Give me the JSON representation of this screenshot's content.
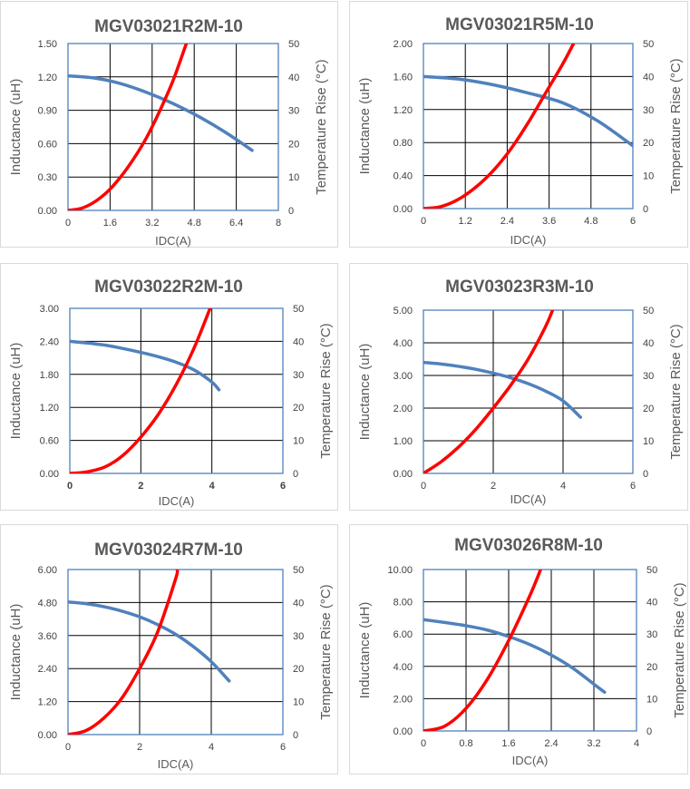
{
  "colors": {
    "inductance": "#4f81bd",
    "temperature": "#ff0000",
    "grid": "#000000",
    "plot_border": "#4f81bd"
  },
  "chart_data": [
    {
      "type": "line",
      "title": "MGV03021R2M-10",
      "xlabel": "IDC(A)",
      "ylabel": "Inductance (uH)",
      "y2label": "Temperature Rise (°C)",
      "xlim": [
        0,
        8
      ],
      "ylim": [
        0,
        1.5
      ],
      "y2lim": [
        0,
        50
      ],
      "xticks": [
        "0",
        "1.6",
        "3.2",
        "4.8",
        "6.4",
        "8"
      ],
      "yticks": [
        "0.00",
        "0.30",
        "0.60",
        "0.90",
        "1.20",
        "1.50"
      ],
      "y2ticks": [
        "0",
        "10",
        "20",
        "30",
        "40",
        "50"
      ],
      "series": [
        {
          "name": "Inductance",
          "axis": "left",
          "x": [
            0,
            1,
            2,
            3,
            4,
            5,
            6,
            7
          ],
          "y": [
            1.21,
            1.19,
            1.14,
            1.06,
            0.96,
            0.84,
            0.7,
            0.54
          ]
        },
        {
          "name": "Temperature Rise",
          "axis": "right",
          "x": [
            0,
            0.5,
            1,
            1.5,
            2,
            2.5,
            3,
            3.5,
            4,
            4.5
          ],
          "y": [
            0,
            0.6,
            2.5,
            5.6,
            10,
            15.5,
            22,
            30,
            39,
            50
          ]
        }
      ]
    },
    {
      "type": "line",
      "title": "MGV03021R5M-10",
      "xlabel": "IDC(A)",
      "ylabel": "Inductance (uH)",
      "y2label": "Temperature Rise (°C)",
      "xlim": [
        0,
        6
      ],
      "ylim": [
        0,
        2.0
      ],
      "y2lim": [
        0,
        50
      ],
      "xticks": [
        "0",
        "1.2",
        "2.4",
        "3.6",
        "4.8",
        "6"
      ],
      "yticks": [
        "0.00",
        "0.40",
        "0.80",
        "1.20",
        "1.60",
        "2.00"
      ],
      "y2ticks": [
        "0",
        "10",
        "20",
        "30",
        "40",
        "50"
      ],
      "series": [
        {
          "name": "Inductance",
          "axis": "left",
          "x": [
            0,
            1,
            2,
            3,
            4,
            5,
            6
          ],
          "y": [
            1.6,
            1.57,
            1.5,
            1.4,
            1.28,
            1.06,
            0.76
          ]
        },
        {
          "name": "Temperature Rise",
          "axis": "right",
          "x": [
            0,
            0.5,
            1,
            1.5,
            2,
            2.5,
            3,
            3.5,
            4,
            4.3
          ],
          "y": [
            0,
            0.6,
            2.8,
            6.5,
            11.5,
            18,
            26,
            35,
            44,
            50
          ]
        }
      ]
    },
    {
      "type": "line",
      "title": "MGV03022R2M-10",
      "xlabel": "IDC(A)",
      "ylabel": "Inductance (uH)",
      "y2label": "Temperature Rise (°C)",
      "xlim": [
        0,
        6
      ],
      "ylim": [
        0,
        3.0
      ],
      "y2lim": [
        0,
        50
      ],
      "xticks": [
        "0",
        "2",
        "4",
        "6"
      ],
      "yticks": [
        "0.00",
        "0.60",
        "1.20",
        "1.80",
        "2.40",
        "3.00"
      ],
      "y2ticks": [
        "0",
        "10",
        "20",
        "30",
        "40",
        "50"
      ],
      "series": [
        {
          "name": "Inductance",
          "axis": "left",
          "x": [
            0,
            0.5,
            1,
            1.5,
            2,
            2.5,
            3,
            3.5,
            4,
            4.2
          ],
          "y": [
            2.4,
            2.37,
            2.33,
            2.27,
            2.2,
            2.12,
            2.02,
            1.88,
            1.66,
            1.52
          ]
        },
        {
          "name": "Temperature Rise",
          "axis": "right",
          "x": [
            0,
            0.5,
            1,
            1.5,
            2,
            2.5,
            3,
            3.5,
            3.95
          ],
          "y": [
            0,
            0.5,
            2,
            5.5,
            11,
            18,
            27,
            38,
            50
          ]
        }
      ]
    },
    {
      "type": "line",
      "title": "MGV03023R3M-10",
      "xlabel": "IDC(A)",
      "ylabel": "Inductance (uH)",
      "y2label": "Temperature Rise (°C)",
      "xlim": [
        0,
        6
      ],
      "ylim": [
        0,
        5.0
      ],
      "y2lim": [
        0,
        50
      ],
      "xticks": [
        "0",
        "2",
        "4",
        "6"
      ],
      "yticks": [
        "0.00",
        "1.00",
        "2.00",
        "3.00",
        "4.00",
        "5.00"
      ],
      "y2ticks": [
        "0",
        "10",
        "20",
        "30",
        "40",
        "50"
      ],
      "series": [
        {
          "name": "Inductance",
          "axis": "left",
          "x": [
            0,
            0.5,
            1,
            1.5,
            2,
            2.5,
            3,
            3.5,
            4,
            4.5
          ],
          "y": [
            3.4,
            3.35,
            3.28,
            3.19,
            3.07,
            2.93,
            2.75,
            2.52,
            2.22,
            1.72
          ]
        },
        {
          "name": "Temperature Rise",
          "axis": "right",
          "x": [
            0,
            0.5,
            1,
            1.5,
            2,
            2.5,
            3,
            3.5,
            3.7
          ],
          "y": [
            0,
            3.5,
            8,
            13.5,
            20,
            27,
            35,
            45,
            50
          ]
        }
      ]
    },
    {
      "type": "line",
      "title": "MGV03024R7M-10",
      "xlabel": "IDC(A)",
      "ylabel": "Inductance (uH)",
      "y2label": "Temperature Rise (°C)",
      "xlim": [
        0,
        6
      ],
      "ylim": [
        0,
        6.0
      ],
      "y2lim": [
        0,
        50
      ],
      "xticks": [
        "0",
        "2",
        "4",
        "6"
      ],
      "yticks": [
        "0.00",
        "1.20",
        "2.40",
        "3.60",
        "4.80",
        "6.00"
      ],
      "y2ticks": [
        "0",
        "10",
        "20",
        "30",
        "40",
        "50"
      ],
      "series": [
        {
          "name": "Inductance",
          "axis": "left",
          "x": [
            0,
            0.5,
            1,
            1.5,
            2,
            2.5,
            3,
            3.5,
            4,
            4.5
          ],
          "y": [
            4.82,
            4.76,
            4.65,
            4.49,
            4.28,
            4.0,
            3.65,
            3.2,
            2.65,
            1.95
          ]
        },
        {
          "name": "Temperature Rise",
          "axis": "right",
          "x": [
            0,
            0.5,
            1,
            1.5,
            2,
            2.5,
            3,
            3.05
          ],
          "y": [
            0,
            1.2,
            5,
            11,
            20,
            31,
            47,
            50
          ]
        }
      ]
    },
    {
      "type": "line",
      "title": "MGV03026R8M-10",
      "xlabel": "IDC(A)",
      "ylabel": "Inductance (uH)",
      "y2label": "Temperature Rise (°C)",
      "xlim": [
        0,
        4
      ],
      "ylim": [
        0,
        10.0
      ],
      "y2lim": [
        0,
        50
      ],
      "xticks": [
        "0",
        "0.8",
        "1.6",
        "2.4",
        "3.2",
        "4"
      ],
      "yticks": [
        "0.00",
        "2.00",
        "4.00",
        "6.00",
        "8.00",
        "10.00"
      ],
      "y2ticks": [
        "0",
        "10",
        "20",
        "30",
        "40",
        "50"
      ],
      "series": [
        {
          "name": "Inductance",
          "axis": "left",
          "x": [
            0,
            0.4,
            0.8,
            1.2,
            1.6,
            2.0,
            2.4,
            2.8,
            3.2,
            3.4
          ],
          "y": [
            6.9,
            6.72,
            6.52,
            6.25,
            5.85,
            5.35,
            4.7,
            3.9,
            2.9,
            2.4
          ]
        },
        {
          "name": "Temperature Rise",
          "axis": "right",
          "x": [
            0,
            0.4,
            0.8,
            1.2,
            1.6,
            2.0,
            2.2
          ],
          "y": [
            0,
            1.5,
            7,
            16,
            28,
            42,
            50
          ]
        }
      ]
    }
  ]
}
